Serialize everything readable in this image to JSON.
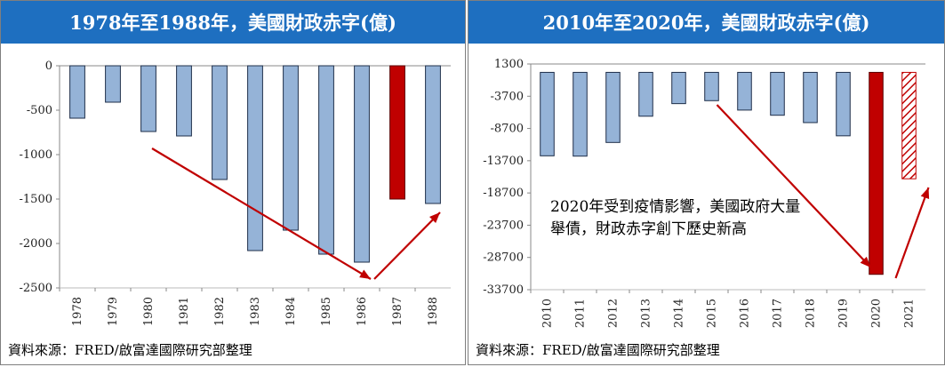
{
  "left": {
    "title": "1978年至1988年，美國財政赤字(億)",
    "source": "資料來源：FRED/啟富達國際研究部整理"
  },
  "right": {
    "title": "2010年至2020年，美國財政赤字(億)",
    "source": "資料來源：FRED/啟富達國際研究部整理",
    "annotation": "2020年受到疫情影響，美國政府大量舉債，財政赤字創下歷史新高"
  },
  "colors": {
    "header": "#1e6fc0",
    "bar": "#95b3d7",
    "highlight": "#c00000",
    "arrow": "#c00000"
  },
  "chart_data": [
    {
      "type": "bar",
      "title": "1978年至1988年，美國財政赤字(億)",
      "categories": [
        "1978",
        "1979",
        "1980",
        "1981",
        "1982",
        "1983",
        "1984",
        "1985",
        "1986",
        "1987",
        "1988"
      ],
      "values": [
        -590,
        -410,
        -740,
        -790,
        -1280,
        -2080,
        -1850,
        -2120,
        -2210,
        -1500,
        -1550
      ],
      "highlight": [
        "1987"
      ],
      "yticks": [
        "0",
        "-500",
        "-1000",
        "-1500",
        "-2000",
        "-2500"
      ],
      "ylim": [
        -2500,
        0
      ],
      "grid": false
    },
    {
      "type": "bar",
      "title": "2010年至2020年，美國財政赤字(億)",
      "categories": [
        "2010",
        "2011",
        "2012",
        "2013",
        "2014",
        "2015",
        "2016",
        "2017",
        "2018",
        "2019",
        "2020",
        "2021"
      ],
      "values": [
        -12940,
        -12990,
        -10870,
        -6800,
        -4850,
        -4390,
        -5850,
        -6650,
        -7790,
        -9840,
        -31320,
        -16500
      ],
      "highlight": [
        "2020"
      ],
      "hatched": [
        "2021"
      ],
      "yticks": [
        "1300",
        "-3700",
        "-8700",
        "-13700",
        "-18700",
        "-23700",
        "-28700",
        "-33700"
      ],
      "ylim": [
        -33700,
        1300
      ],
      "grid": false
    }
  ]
}
